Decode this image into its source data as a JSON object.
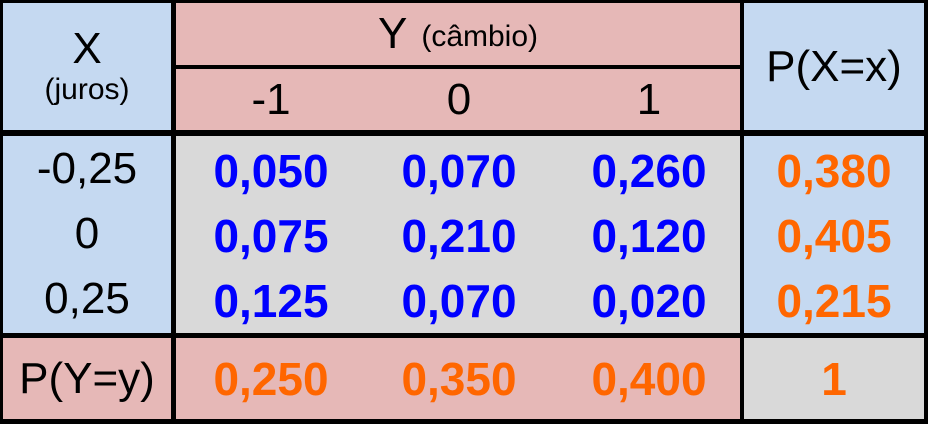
{
  "header": {
    "x_title": "X",
    "x_subtitle": "(juros)",
    "y_title": "Y",
    "y_subtitle": "(câmbio)",
    "y_values": [
      "-1",
      "0",
      "1"
    ],
    "px_title": "P(X=x)"
  },
  "rows": [
    {
      "x": "-0,25",
      "cells": [
        "0,050",
        "0,070",
        "0,260"
      ],
      "px": "0,380"
    },
    {
      "x": "0",
      "cells": [
        "0,075",
        "0,210",
        "0,120"
      ],
      "px": "0,405"
    },
    {
      "x": "0,25",
      "cells": [
        "0,125",
        "0,070",
        "0,020"
      ],
      "px": "0,215"
    }
  ],
  "footer": {
    "py_label": "P(Y=y)",
    "py_values": [
      "0,250",
      "0,350",
      "0,400"
    ],
    "total": "1"
  },
  "colors": {
    "header_blue": "#c5d9f1",
    "header_pink": "#e6b8b7",
    "body_gray": "#d9d9d9",
    "joint_prob": "#0000ff",
    "marginal_prob": "#ff6600",
    "border": "#000000"
  }
}
